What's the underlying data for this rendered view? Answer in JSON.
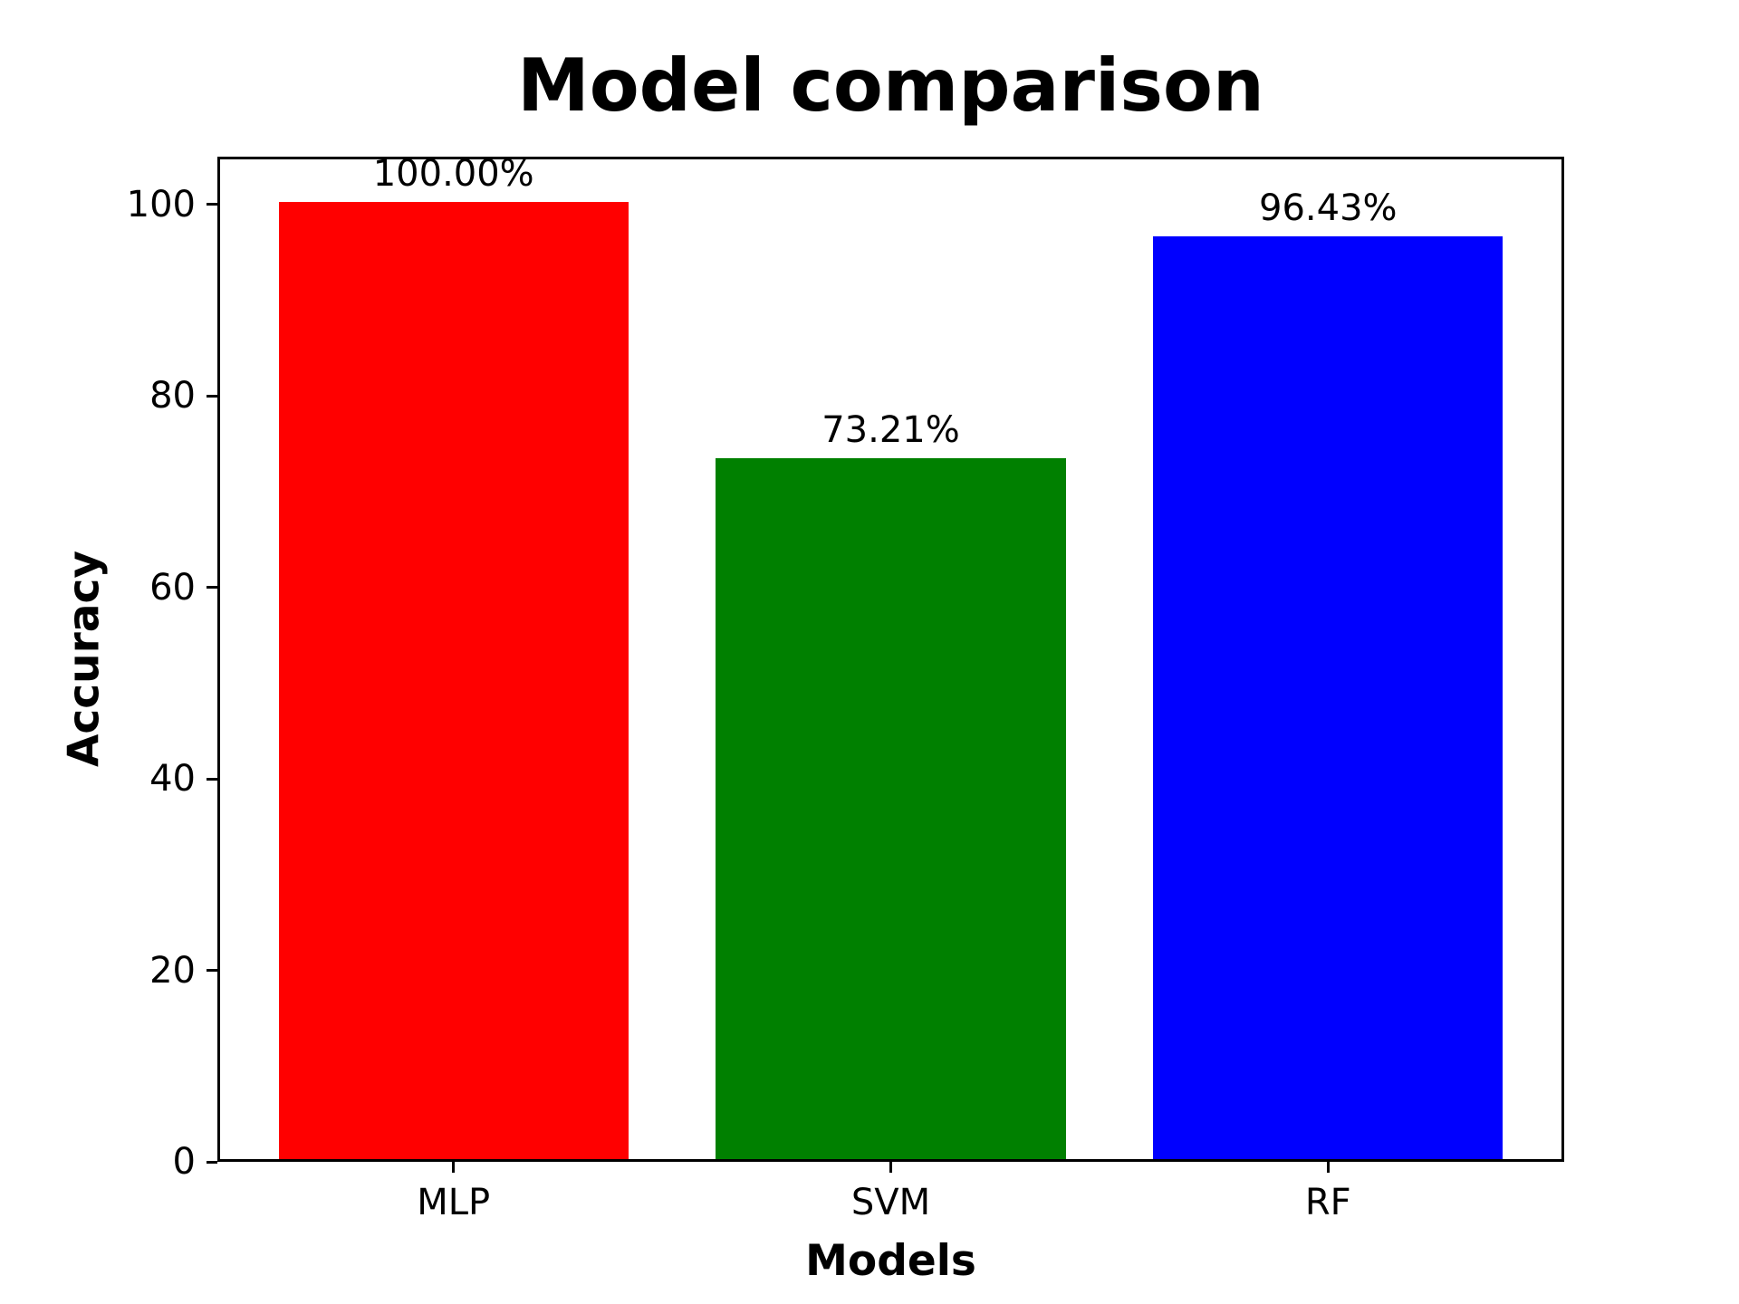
{
  "chart_data": {
    "type": "bar",
    "title": "Model comparison",
    "xlabel": "Models",
    "ylabel": "Accuracy",
    "categories": [
      "MLP",
      "SVM",
      "RF"
    ],
    "values": [
      100.0,
      73.21,
      96.43
    ],
    "value_labels": [
      "100.00%",
      "73.21%",
      "96.43%"
    ],
    "bar_colors": [
      "#ff0000",
      "#008000",
      "#0000ff"
    ],
    "yticks": [
      0,
      20,
      40,
      60,
      80,
      100
    ],
    "ylim": [
      0,
      105
    ],
    "grid": false,
    "legend": "none",
    "background_color": "#ffffff",
    "spine_color": "#000000",
    "text_color": "#000000"
  }
}
